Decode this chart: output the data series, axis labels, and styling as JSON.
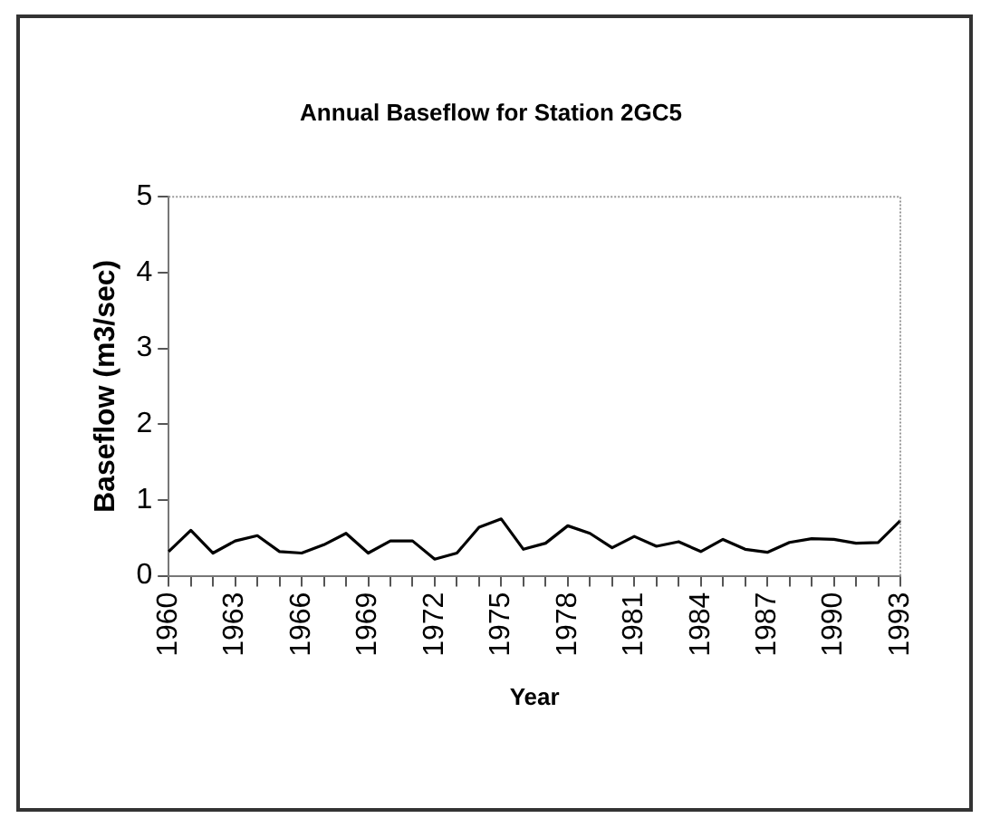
{
  "chart_data": {
    "type": "line",
    "title": "Annual Baseflow for Station 2GC5",
    "xlabel": "Year",
    "ylabel": "Baseflow (m3/sec)",
    "categories": [
      "1960",
      null,
      null,
      "1963",
      null,
      null,
      "1966",
      null,
      null,
      "1969",
      null,
      null,
      "1972",
      null,
      null,
      "1975",
      null,
      null,
      "1978",
      null,
      null,
      "1981",
      null,
      null,
      "1984",
      null,
      null,
      "1987",
      null,
      null,
      "1990",
      null,
      null,
      "1993"
    ],
    "series": [
      {
        "color": "#000000",
        "values": [
          0.32,
          0.6,
          0.3,
          0.46,
          0.53,
          0.32,
          0.3,
          0.41,
          0.56,
          0.3,
          0.46,
          0.46,
          0.22,
          0.3,
          0.64,
          0.75,
          0.35,
          0.43,
          0.66,
          0.56,
          0.37,
          0.52,
          0.39,
          0.45,
          0.32,
          0.48,
          0.35,
          0.31,
          0.44,
          0.49,
          0.48,
          0.43,
          0.44,
          0.73
        ]
      }
    ],
    "ylim": [
      0,
      5
    ],
    "yticks": [
      0,
      1,
      2,
      3,
      4,
      5
    ],
    "grid": false,
    "legend": false,
    "marker": "none",
    "line_style": "solid"
  }
}
